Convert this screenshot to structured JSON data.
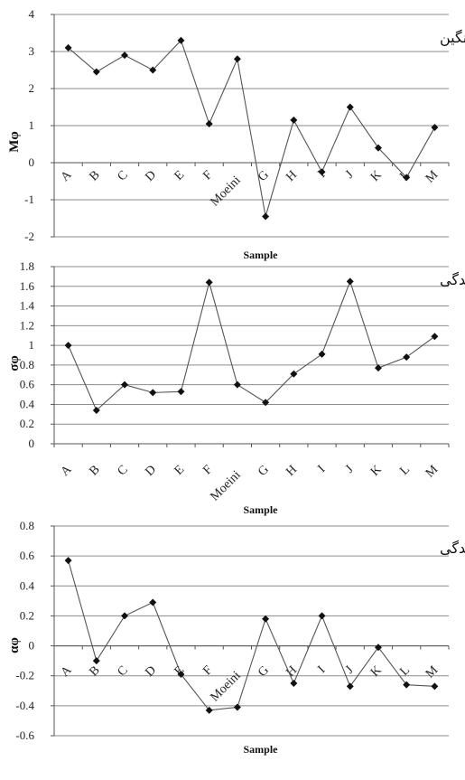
{
  "chart_data": [
    {
      "type": "line",
      "title": "میانگین",
      "xlabel": "Sample",
      "ylabel": "Mφ",
      "ylim": [
        -2,
        4
      ],
      "yticks": [
        "-2",
        "-1",
        "0",
        "1",
        "2",
        "3",
        "4"
      ],
      "categories": [
        "A",
        "B",
        "C",
        "D",
        "E",
        "F",
        "Moeini",
        "G",
        "H",
        "I",
        "J",
        "K",
        "L",
        "M"
      ],
      "series": [
        {
          "values": [
            3.1,
            2.45,
            2.9,
            2.5,
            3.3,
            1.05,
            2.8,
            -1.45,
            1.15,
            -0.25,
            1.5,
            0.4,
            -0.4,
            0.95
          ]
        }
      ],
      "grid": true,
      "title_position": "top-right"
    },
    {
      "type": "line",
      "title": "جورشدگی",
      "xlabel": "Sample",
      "ylabel": "σφ",
      "ylim": [
        0,
        1.8
      ],
      "yticks": [
        "0",
        "0.2",
        "0.4",
        "0.6",
        "0.8",
        "1",
        "1.2",
        "1.4",
        "1.6",
        "1.8"
      ],
      "categories": [
        "A",
        "B",
        "C",
        "D",
        "E",
        "F",
        "Moeini",
        "G",
        "H",
        "I",
        "J",
        "K",
        "L",
        "M"
      ],
      "series": [
        {
          "values": [
            1.0,
            0.34,
            0.6,
            0.52,
            0.53,
            1.64,
            0.6,
            0.42,
            0.71,
            0.91,
            1.65,
            0.77,
            0.88,
            1.09
          ]
        }
      ],
      "grid": true,
      "title_position": "top-right"
    },
    {
      "type": "line",
      "title": "کج شدگی",
      "xlabel": "Sample",
      "ylabel": "αφ",
      "ylim": [
        -0.6,
        0.8
      ],
      "yticks": [
        "-0.6",
        "-0.4",
        "-0.2",
        "0",
        "0.2",
        "0.4",
        "0.6",
        "0.8"
      ],
      "categories": [
        "A",
        "B",
        "C",
        "D",
        "E",
        "F",
        "Moeini",
        "G",
        "H",
        "I",
        "J",
        "K",
        "L",
        "M"
      ],
      "series": [
        {
          "values": [
            0.57,
            -0.1,
            0.2,
            0.29,
            -0.19,
            -0.43,
            -0.41,
            0.18,
            -0.25,
            0.2,
            -0.27,
            -0.01,
            -0.26,
            -0.27
          ]
        }
      ],
      "grid": true,
      "title_position": "top-right"
    }
  ]
}
